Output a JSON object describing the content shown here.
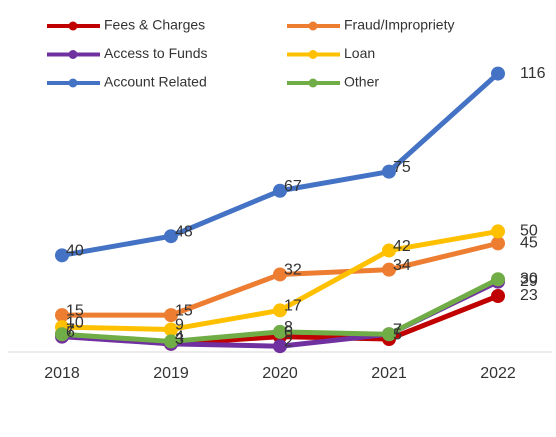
{
  "chart_data": {
    "type": "line",
    "categories": [
      "2018",
      "2019",
      "2020",
      "2021",
      "2022"
    ],
    "ylim": [
      0,
      120
    ],
    "series": [
      {
        "name": "Fees & Charges",
        "color": "#c00000",
        "values": [
          7,
          3,
          6,
          5,
          23
        ]
      },
      {
        "name": "Fraud/Impropriety",
        "color": "#ed7d31",
        "values": [
          15,
          15,
          32,
          34,
          45
        ]
      },
      {
        "name": "Access to Funds",
        "color": "#7030a0",
        "values": [
          6,
          3,
          2,
          7,
          29
        ]
      },
      {
        "name": "Loan",
        "color": "#ffc000",
        "values": [
          10,
          9,
          17,
          42,
          50
        ]
      },
      {
        "name": "Account Related",
        "color": "#4472c4",
        "values": [
          40,
          48,
          67,
          75,
          116
        ]
      },
      {
        "name": "Other",
        "color": "#70ad47",
        "values": [
          7,
          4,
          8,
          7,
          30
        ]
      }
    ]
  }
}
